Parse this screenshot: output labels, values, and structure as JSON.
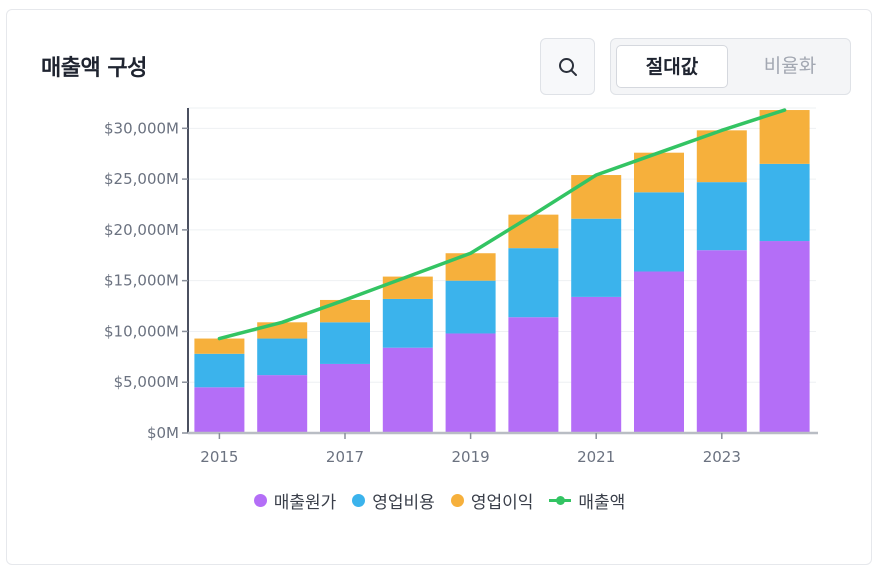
{
  "card": {
    "title": "매출액 구성",
    "toggle": {
      "active_label": "절대값",
      "inactive_label": "비율화"
    },
    "search_icon": "search-icon"
  },
  "colors": {
    "cost_of_sales": "#b46ef7",
    "operating_expenses": "#3bb3ec",
    "operating_income": "#f6b03c",
    "revenue_line": "#33c463"
  },
  "chart_data": {
    "type": "bar",
    "stacked": true,
    "categories": [
      "2015",
      "2016",
      "2017",
      "2018",
      "2019",
      "2020",
      "2021",
      "2022",
      "2023",
      "2024"
    ],
    "series": [
      {
        "name": "매출원가",
        "values": [
          4500,
          5700,
          6800,
          8400,
          9800,
          11400,
          13400,
          15900,
          18000,
          18900
        ]
      },
      {
        "name": "영업비용",
        "values": [
          3300,
          3600,
          4100,
          4800,
          5200,
          6800,
          7700,
          7800,
          6700,
          7600
        ]
      },
      {
        "name": "영업이익",
        "values": [
          1500,
          1600,
          2200,
          2200,
          2700,
          3300,
          4300,
          3900,
          5100,
          5300
        ]
      }
    ],
    "line": {
      "name": "매출액",
      "values": [
        9300,
        10900,
        13100,
        15400,
        17700,
        21500,
        25400,
        27600,
        29800,
        31800
      ]
    },
    "yticks": [
      "$0M",
      "$5,000M",
      "$10,000M",
      "$15,000M",
      "$20,000M",
      "$25,000M",
      "$30,000M"
    ],
    "xticks": [
      "2015",
      "2017",
      "2019",
      "2021",
      "2023"
    ],
    "ylim": [
      0,
      32000
    ],
    "legend": [
      "매출원가",
      "영업비용",
      "영업이익",
      "매출액"
    ],
    "legend_position": "bottom"
  }
}
